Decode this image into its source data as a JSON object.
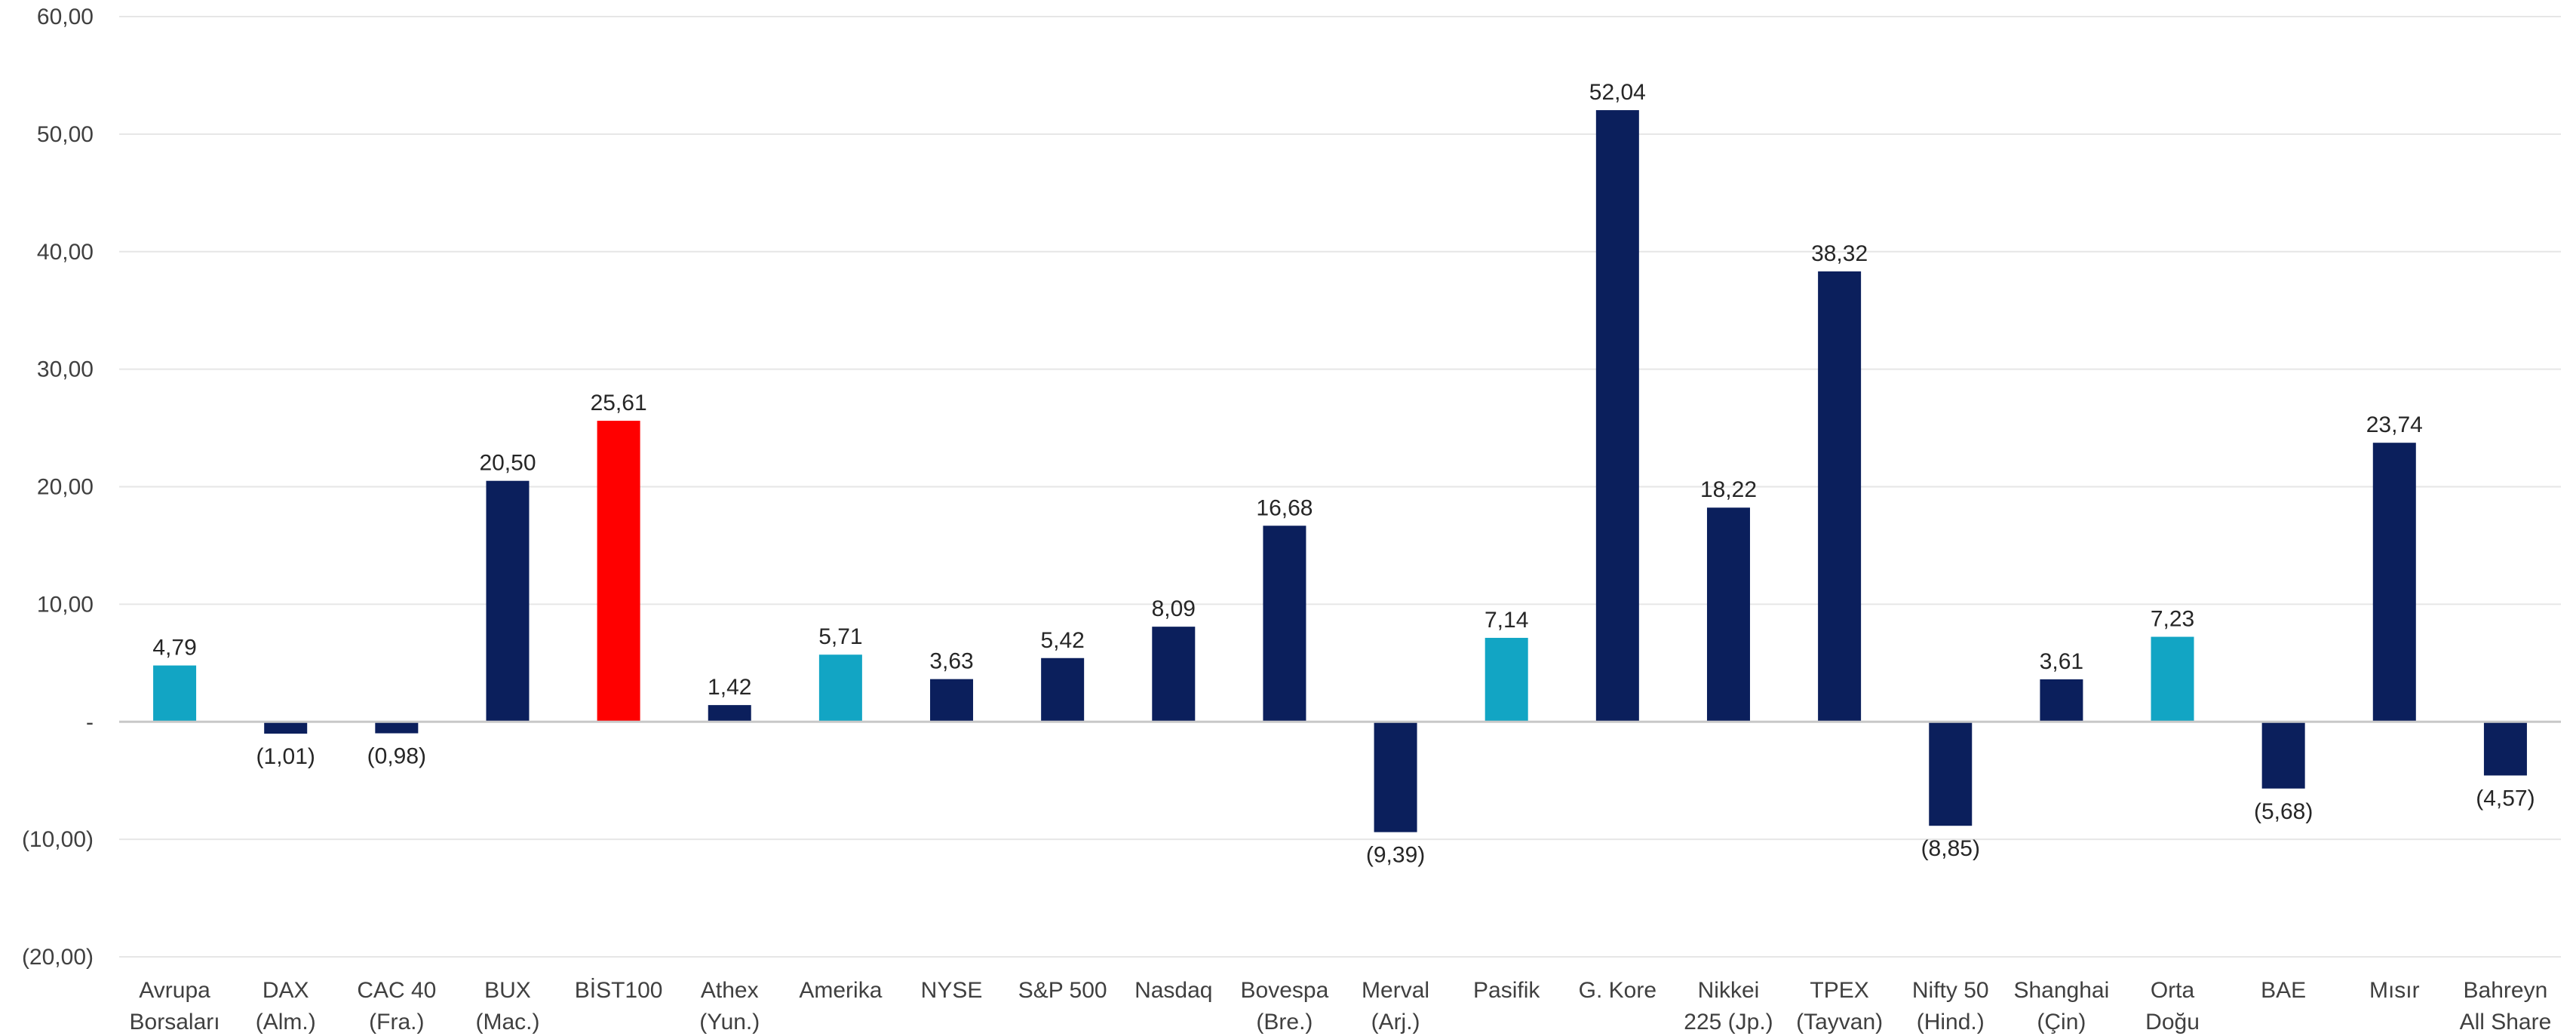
{
  "chart_data": {
    "type": "bar",
    "categories": [
      [
        "Avrupa",
        "Borsaları"
      ],
      [
        "DAX",
        "(Alm.)"
      ],
      [
        "CAC 40",
        "(Fra.)"
      ],
      [
        "BUX",
        "(Mac.)"
      ],
      [
        "BİST100"
      ],
      [
        "Athex",
        "(Yun.)"
      ],
      [
        "Amerika"
      ],
      [
        "NYSE"
      ],
      [
        "S&P 500"
      ],
      [
        "Nasdaq"
      ],
      [
        "Bovespa",
        "(Bre.)"
      ],
      [
        "Merval",
        "(Arj.)"
      ],
      [
        "Pasifik"
      ],
      [
        "G. Kore"
      ],
      [
        "Nikkei",
        "225 (Jp.)"
      ],
      [
        "TPEX",
        "(Tayvan)"
      ],
      [
        "Nifty 50",
        "(Hind.)"
      ],
      [
        "Shanghai",
        "(Çin)"
      ],
      [
        "Orta",
        "Doğu"
      ],
      [
        "BAE"
      ],
      [
        "Mısır"
      ],
      [
        "Bahreyn",
        "All Share"
      ]
    ],
    "values": [
      4.79,
      -1.01,
      -0.98,
      20.5,
      25.61,
      1.42,
      5.71,
      3.63,
      5.42,
      8.09,
      16.68,
      -9.39,
      7.14,
      52.04,
      18.22,
      38.32,
      -8.85,
      3.61,
      7.23,
      -5.68,
      23.74,
      -4.57
    ],
    "data_labels": [
      "4,79",
      "(1,01)",
      "(0,98)",
      "20,50",
      "25,61",
      "1,42",
      "5,71",
      "3,63",
      "5,42",
      "8,09",
      "16,68",
      "(9,39)",
      "7,14",
      "52,04",
      "18,22",
      "38,32",
      "(8,85)",
      "3,61",
      "7,23",
      "(5,68)",
      "23,74",
      "(4,57)"
    ],
    "bar_colors": [
      "#12a5c4",
      "#0b1f5c",
      "#0b1f5c",
      "#0b1f5c",
      "#ff0000",
      "#0b1f5c",
      "#12a5c4",
      "#0b1f5c",
      "#0b1f5c",
      "#0b1f5c",
      "#0b1f5c",
      "#0b1f5c",
      "#12a5c4",
      "#0b1f5c",
      "#0b1f5c",
      "#0b1f5c",
      "#0b1f5c",
      "#0b1f5c",
      "#12a5c4",
      "#0b1f5c",
      "#0b1f5c",
      "#0b1f5c"
    ],
    "ylim": [
      -20,
      60
    ],
    "yticks": [
      60,
      50,
      40,
      30,
      20,
      10,
      0,
      -10,
      -20
    ],
    "ytick_labels": [
      "60,00",
      "50,00",
      "40,00",
      "30,00",
      "20,00",
      "10,00",
      "-",
      "(10,00)",
      "(20,00)"
    ],
    "grid": true,
    "title": "",
    "xlabel": "",
    "ylabel": ""
  }
}
